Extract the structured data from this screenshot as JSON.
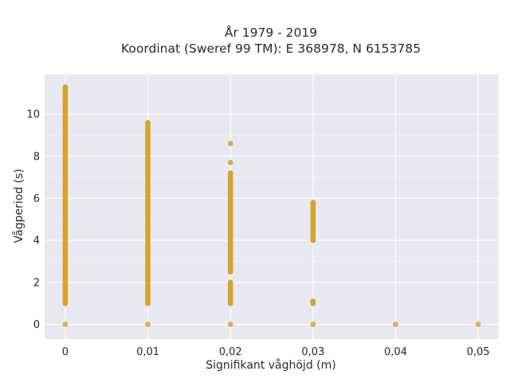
{
  "chart_data": {
    "type": "scatter",
    "title_lines": [
      "År 1979 - 2019",
      "Koordinat (Sweref 99 TM): E 368978, N 6153785"
    ],
    "xlabel": "Signifikant våghöjd (m)",
    "ylabel": "Vågperiod (s)",
    "xlim": [
      -0.0025,
      0.0525
    ],
    "ylim": [
      -0.7,
      11.9
    ],
    "xticks": [
      0,
      0.01,
      0.02,
      0.03,
      0.04,
      0.05
    ],
    "xtick_labels": [
      "0",
      "0,01",
      "0,02",
      "0,03",
      "0,04",
      "0,05"
    ],
    "yticks": [
      0,
      2,
      4,
      6,
      8,
      10
    ],
    "ytick_labels": [
      "0",
      "2",
      "4",
      "6",
      "8",
      "10"
    ],
    "grid": true,
    "marker_color": "#d4a52b",
    "background": "#e9e9f1",
    "series": [
      {
        "points": [
          [
            0,
            0
          ],
          [
            0,
            1.0
          ],
          [
            0,
            1.1
          ],
          [
            0,
            1.2
          ],
          [
            0,
            1.4
          ],
          [
            0,
            1.6
          ],
          [
            0,
            1.8
          ],
          [
            0,
            2.0
          ],
          [
            0,
            2.3
          ],
          [
            0,
            2.6
          ],
          [
            0,
            3.0
          ],
          [
            0,
            3.4
          ],
          [
            0,
            3.8
          ],
          [
            0,
            4.2
          ],
          [
            0,
            4.6
          ],
          [
            0,
            5.0
          ],
          [
            0,
            5.4
          ],
          [
            0,
            5.8
          ],
          [
            0,
            6.2
          ],
          [
            0,
            6.6
          ],
          [
            0,
            7.0
          ],
          [
            0,
            7.4
          ],
          [
            0,
            7.8
          ],
          [
            0,
            8.2
          ],
          [
            0,
            8.6
          ],
          [
            0,
            9.0
          ],
          [
            0,
            9.4
          ],
          [
            0,
            9.8
          ],
          [
            0,
            10.2
          ],
          [
            0,
            10.5
          ],
          [
            0,
            10.8
          ],
          [
            0,
            11.0
          ],
          [
            0,
            11.3
          ],
          [
            0.01,
            0
          ],
          [
            0.01,
            1.0
          ],
          [
            0.01,
            1.2
          ],
          [
            0.01,
            1.5
          ],
          [
            0.01,
            1.8
          ],
          [
            0.01,
            2.1
          ],
          [
            0.01,
            2.5
          ],
          [
            0.01,
            2.9
          ],
          [
            0.01,
            3.3
          ],
          [
            0.01,
            3.7
          ],
          [
            0.01,
            4.1
          ],
          [
            0.01,
            4.5
          ],
          [
            0.01,
            4.9
          ],
          [
            0.01,
            5.3
          ],
          [
            0.01,
            5.7
          ],
          [
            0.01,
            6.1
          ],
          [
            0.01,
            6.5
          ],
          [
            0.01,
            6.9
          ],
          [
            0.01,
            7.3
          ],
          [
            0.01,
            7.7
          ],
          [
            0.01,
            8.1
          ],
          [
            0.01,
            8.5
          ],
          [
            0.01,
            8.8
          ],
          [
            0.01,
            9.0
          ],
          [
            0.01,
            9.2
          ],
          [
            0.01,
            9.4
          ],
          [
            0.01,
            9.6
          ],
          [
            0.02,
            0
          ],
          [
            0.02,
            1.0
          ],
          [
            0.02,
            1.1
          ],
          [
            0.02,
            1.4
          ],
          [
            0.02,
            1.5
          ],
          [
            0.02,
            1.9
          ],
          [
            0.02,
            2.0
          ],
          [
            0.02,
            2.5
          ],
          [
            0.02,
            2.6
          ],
          [
            0.02,
            2.8
          ],
          [
            0.02,
            3.0
          ],
          [
            0.02,
            3.3
          ],
          [
            0.02,
            3.6
          ],
          [
            0.02,
            3.9
          ],
          [
            0.02,
            4.2
          ],
          [
            0.02,
            4.5
          ],
          [
            0.02,
            4.8
          ],
          [
            0.02,
            5.1
          ],
          [
            0.02,
            5.4
          ],
          [
            0.02,
            5.7
          ],
          [
            0.02,
            6.0
          ],
          [
            0.02,
            6.3
          ],
          [
            0.02,
            6.5
          ],
          [
            0.02,
            6.8
          ],
          [
            0.02,
            7.0
          ],
          [
            0.02,
            7.2
          ],
          [
            0.02,
            7.7
          ],
          [
            0.02,
            8.6
          ],
          [
            0.03,
            0
          ],
          [
            0.03,
            1.0
          ],
          [
            0.03,
            1.1
          ],
          [
            0.03,
            4.0
          ],
          [
            0.03,
            4.4
          ],
          [
            0.03,
            4.6
          ],
          [
            0.03,
            4.8
          ],
          [
            0.03,
            5.0
          ],
          [
            0.03,
            5.2
          ],
          [
            0.03,
            5.4
          ],
          [
            0.03,
            5.6
          ],
          [
            0.03,
            5.8
          ],
          [
            0.04,
            0
          ],
          [
            0.05,
            0
          ]
        ]
      }
    ]
  }
}
